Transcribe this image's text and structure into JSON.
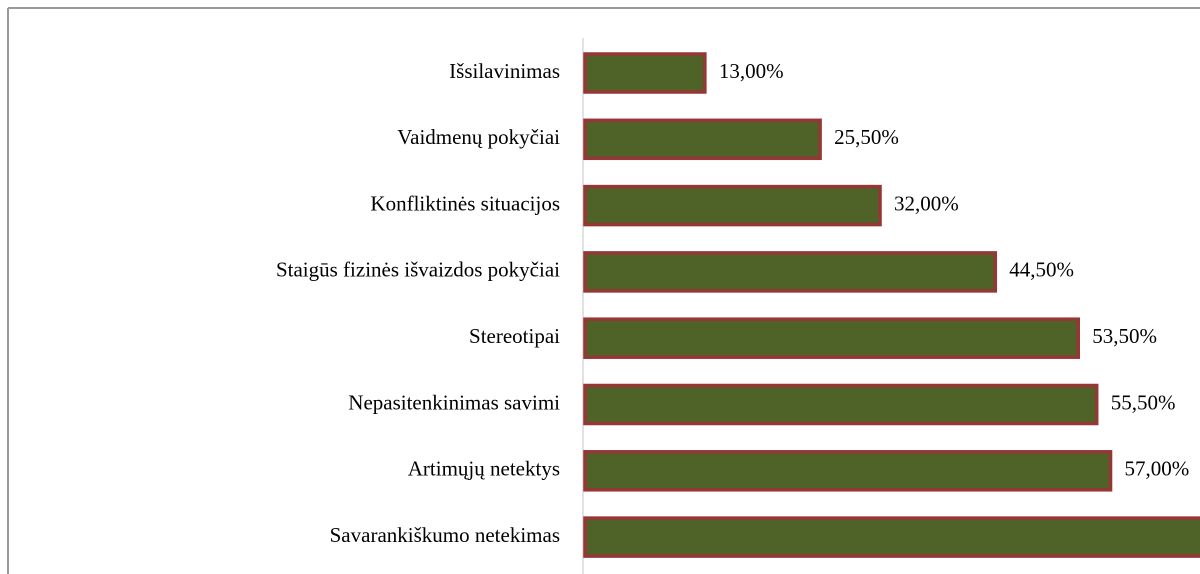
{
  "chart_data": {
    "type": "bar",
    "orientation": "horizontal",
    "categories": [
      "Išsilavinimas",
      "Vaidmenų pokyčiai",
      "Konfliktinės situacijos",
      "Staigūs fizinės išvaizdos pokyčiai",
      "Stereotipai ",
      "Nepasitenkinimas savimi",
      "Artimųjų netektys",
      "Savarankiškumo netekimas"
    ],
    "values": [
      13,
      25.5,
      32,
      44.5,
      53.5,
      55.5,
      57,
      68
    ],
    "value_labels": [
      "13,00%",
      "25,50%",
      "32,00%",
      "44,50%",
      "53,50%",
      "55,50%",
      "57,00%",
      null
    ],
    "color": "#4f6228",
    "edge_color": "#953735"
  }
}
